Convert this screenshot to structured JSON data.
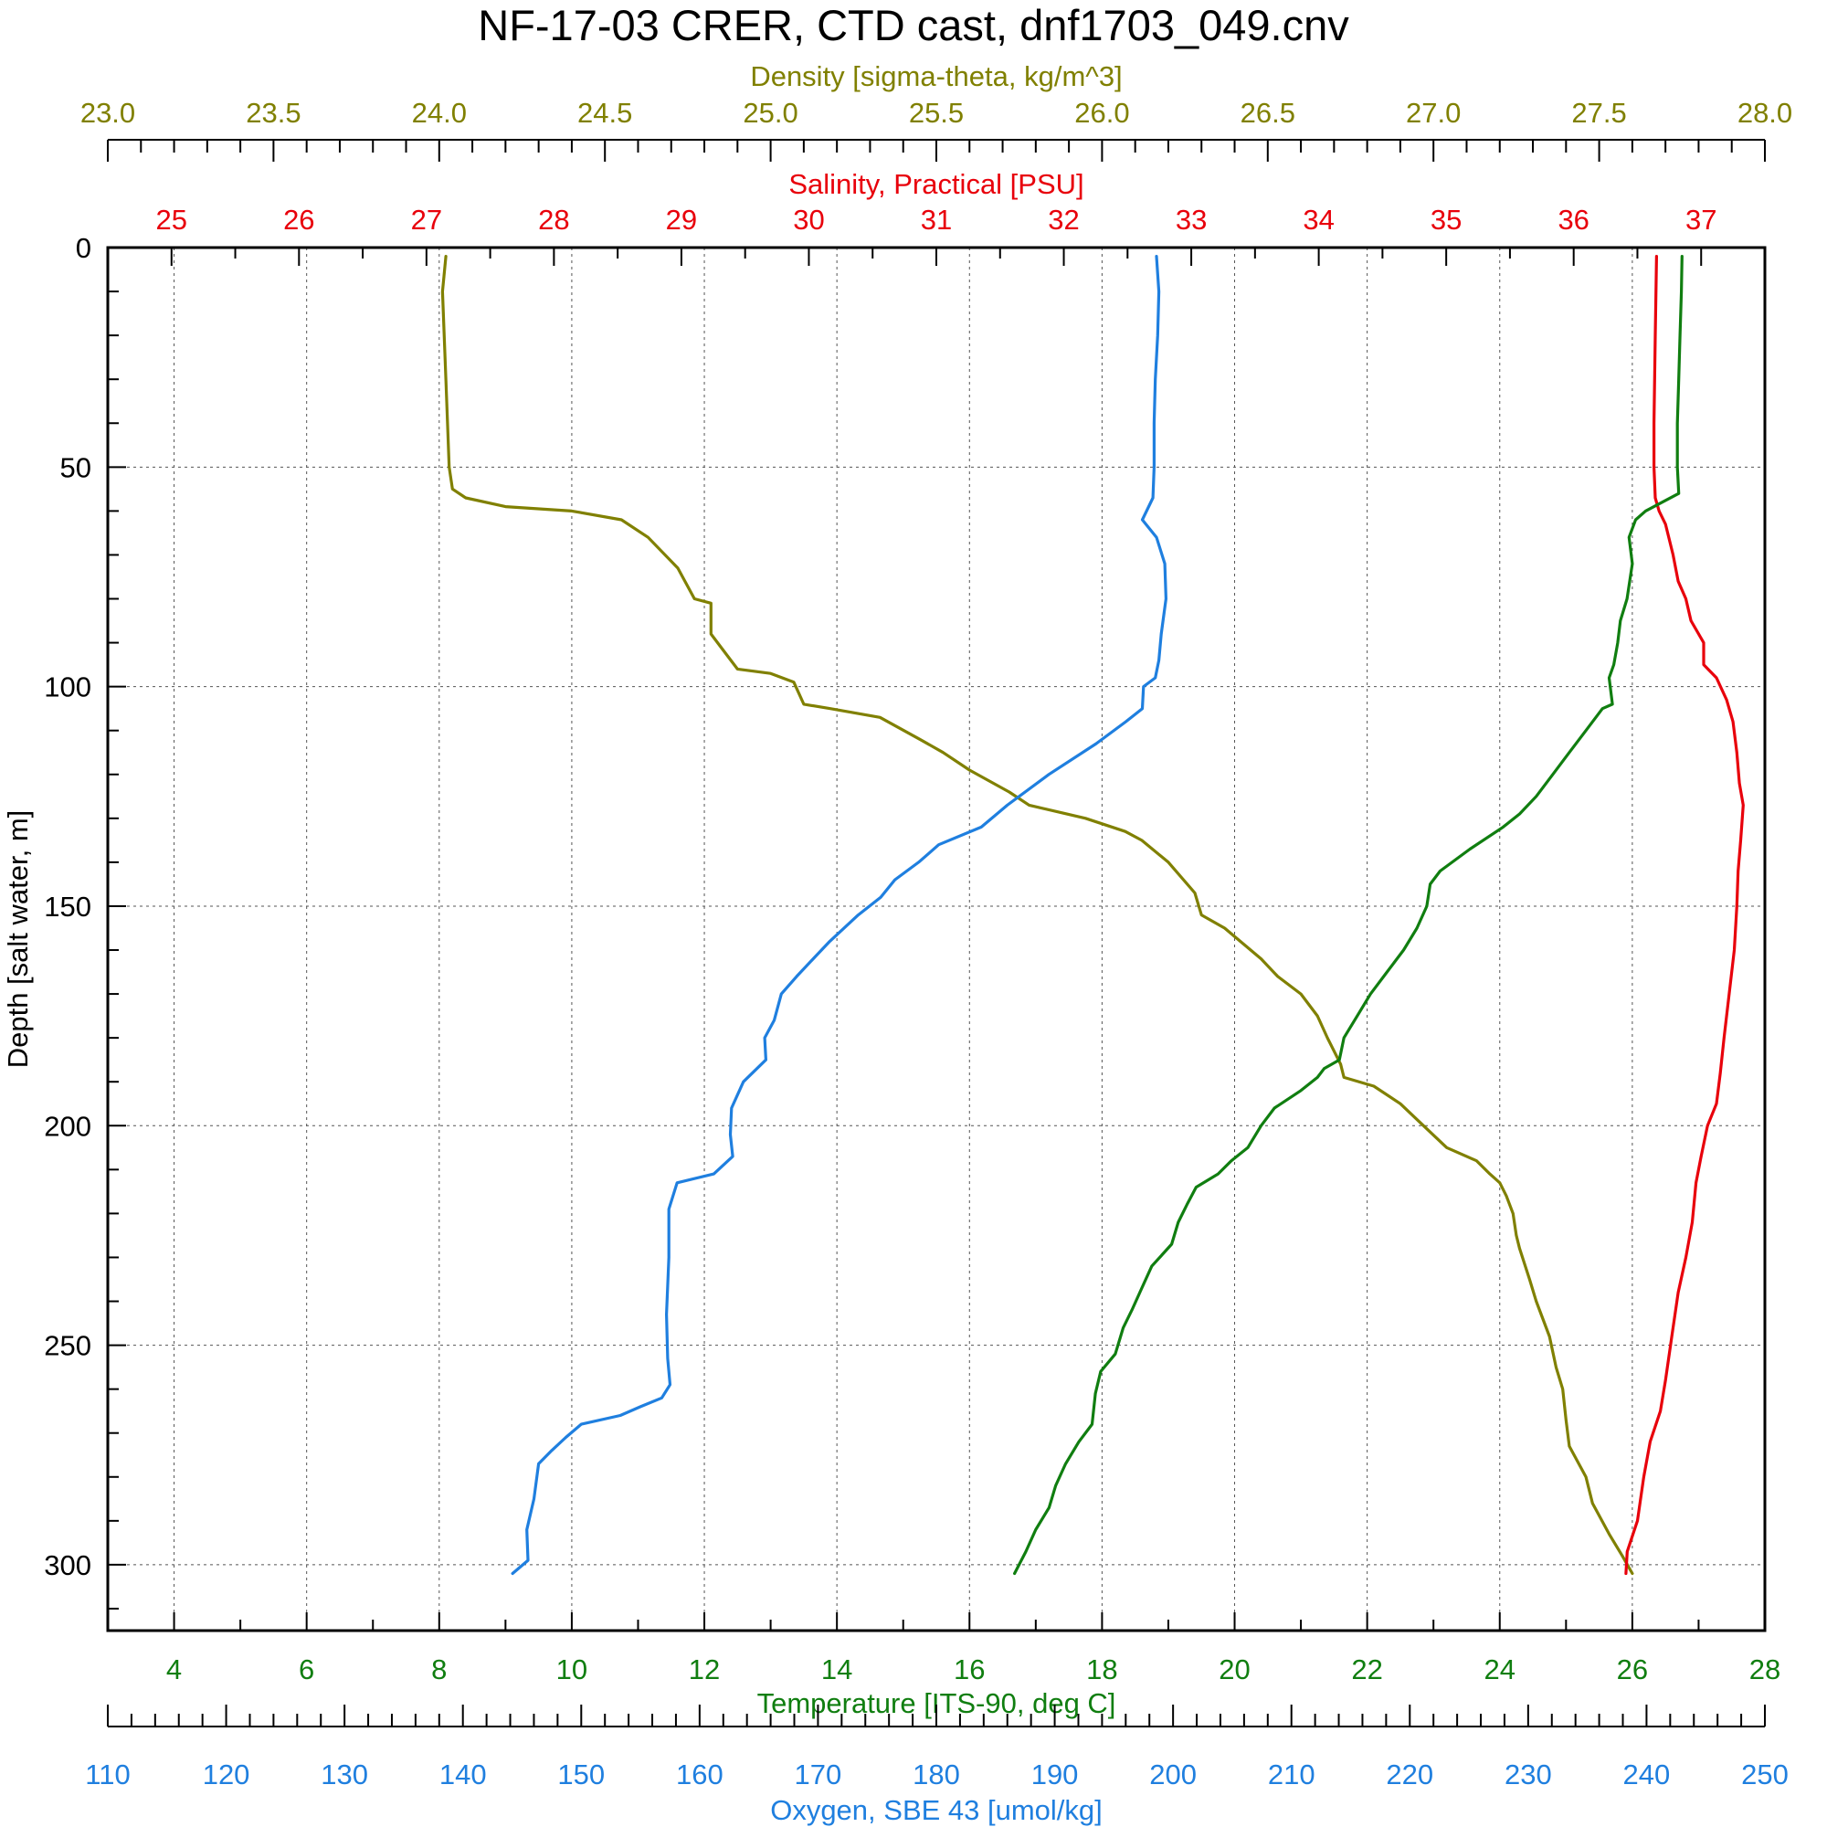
{
  "chart_data": {
    "type": "line",
    "title": "NF-17-03 CRER, CTD cast, dnf1703_049.cnv",
    "grid": true,
    "y_axis": {
      "label": "Depth [salt water, m]",
      "range": [
        0,
        315
      ],
      "inverted": true,
      "ticks": [
        0,
        50,
        100,
        150,
        200,
        250,
        300
      ],
      "minor_step": 10
    },
    "x_axes": [
      {
        "id": "density",
        "label": "Density [sigma-theta, kg/m^3]",
        "position": "top-upper",
        "range": [
          23.0,
          28.0
        ],
        "ticks": [
          "23.0",
          "23.5",
          "24.0",
          "24.5",
          "25.0",
          "25.5",
          "26.0",
          "26.5",
          "27.0",
          "27.5",
          "28.0"
        ],
        "minor_step": 0.1,
        "color": "#808000"
      },
      {
        "id": "salinity",
        "label": "Salinity, Practical [PSU]",
        "position": "top",
        "range": [
          24.5,
          37.5
        ],
        "ticks": [
          "25",
          "26",
          "27",
          "28",
          "29",
          "30",
          "31",
          "32",
          "33",
          "34",
          "35",
          "36",
          "37"
        ],
        "minor_step": 0.5,
        "color": "#e8000b"
      },
      {
        "id": "temperature",
        "label": "Temperature [ITS-90, deg C]",
        "position": "bottom",
        "range": [
          3,
          28
        ],
        "ticks": [
          "4",
          "6",
          "8",
          "10",
          "12",
          "14",
          "16",
          "18",
          "20",
          "22",
          "24",
          "26",
          "28"
        ],
        "minor_step": 1,
        "color": "#107e10"
      },
      {
        "id": "oxygen",
        "label": "Oxygen, SBE 43 [umol/kg]",
        "position": "bottom-lower",
        "range": [
          110,
          250
        ],
        "ticks": [
          "110",
          "120",
          "130",
          "140",
          "150",
          "160",
          "170",
          "180",
          "190",
          "200",
          "210",
          "220",
          "230",
          "240",
          "250"
        ],
        "minor_step": 2,
        "color": "#1f7fdf"
      }
    ],
    "series": [
      {
        "name": "Density [sigma-theta, kg/m^3]",
        "axis": "density",
        "color": "#808000",
        "points": [
          [
            24.02,
            2
          ],
          [
            24.01,
            10
          ],
          [
            24.02,
            30
          ],
          [
            24.03,
            50
          ],
          [
            24.04,
            55
          ],
          [
            24.08,
            57
          ],
          [
            24.2,
            59
          ],
          [
            24.4,
            60
          ],
          [
            24.55,
            62
          ],
          [
            24.63,
            66
          ],
          [
            24.72,
            73
          ],
          [
            24.77,
            80
          ],
          [
            24.82,
            81
          ],
          [
            24.82,
            88
          ],
          [
            24.87,
            93
          ],
          [
            24.9,
            96
          ],
          [
            25.0,
            97
          ],
          [
            25.07,
            99
          ],
          [
            25.1,
            104
          ],
          [
            25.18,
            105
          ],
          [
            25.33,
            107
          ],
          [
            25.45,
            112
          ],
          [
            25.52,
            115
          ],
          [
            25.6,
            119
          ],
          [
            25.72,
            124
          ],
          [
            25.78,
            127
          ],
          [
            25.95,
            130
          ],
          [
            26.07,
            133
          ],
          [
            26.12,
            135
          ],
          [
            26.2,
            140
          ],
          [
            26.28,
            147
          ],
          [
            26.3,
            152
          ],
          [
            26.37,
            155
          ],
          [
            26.48,
            162
          ],
          [
            26.53,
            166
          ],
          [
            26.6,
            170
          ],
          [
            26.65,
            175
          ],
          [
            26.68,
            180
          ],
          [
            26.72,
            186
          ],
          [
            26.73,
            189
          ],
          [
            26.82,
            191
          ],
          [
            26.9,
            195
          ],
          [
            26.97,
            200
          ],
          [
            27.04,
            205
          ],
          [
            27.13,
            208
          ],
          [
            27.17,
            211
          ],
          [
            27.2,
            213
          ],
          [
            27.22,
            216
          ],
          [
            27.24,
            220
          ],
          [
            27.25,
            225
          ],
          [
            27.26,
            228
          ],
          [
            27.29,
            235
          ],
          [
            27.31,
            240
          ],
          [
            27.35,
            248
          ],
          [
            27.37,
            255
          ],
          [
            27.39,
            260
          ],
          [
            27.4,
            267
          ],
          [
            27.41,
            273
          ],
          [
            27.46,
            280
          ],
          [
            27.48,
            286
          ],
          [
            27.53,
            293
          ],
          [
            27.57,
            298
          ],
          [
            27.6,
            302
          ]
        ]
      },
      {
        "name": "Salinity, Practical [PSU]",
        "axis": "salinity",
        "color": "#e8000b",
        "points": [
          [
            36.65,
            2
          ],
          [
            36.64,
            20
          ],
          [
            36.63,
            40
          ],
          [
            36.63,
            50
          ],
          [
            36.64,
            57
          ],
          [
            36.67,
            60
          ],
          [
            36.72,
            63
          ],
          [
            36.78,
            70
          ],
          [
            36.82,
            76
          ],
          [
            36.88,
            80
          ],
          [
            36.92,
            85
          ],
          [
            37.02,
            90
          ],
          [
            37.02,
            95
          ],
          [
            37.12,
            98
          ],
          [
            37.2,
            103
          ],
          [
            37.25,
            108
          ],
          [
            37.28,
            115
          ],
          [
            37.3,
            122
          ],
          [
            37.33,
            127
          ],
          [
            37.31,
            135
          ],
          [
            37.29,
            142
          ],
          [
            37.28,
            150
          ],
          [
            37.26,
            160
          ],
          [
            37.22,
            170
          ],
          [
            37.18,
            180
          ],
          [
            37.15,
            188
          ],
          [
            37.12,
            195
          ],
          [
            37.05,
            200
          ],
          [
            37.0,
            207
          ],
          [
            36.96,
            213
          ],
          [
            36.93,
            222
          ],
          [
            36.88,
            230
          ],
          [
            36.82,
            238
          ],
          [
            36.77,
            248
          ],
          [
            36.72,
            258
          ],
          [
            36.68,
            265
          ],
          [
            36.6,
            272
          ],
          [
            36.55,
            280
          ],
          [
            36.5,
            290
          ],
          [
            36.42,
            297
          ],
          [
            36.41,
            302
          ]
        ]
      },
      {
        "name": "Temperature [ITS-90, deg C]",
        "axis": "temperature",
        "color": "#107e10",
        "points": [
          [
            26.75,
            2
          ],
          [
            26.74,
            10
          ],
          [
            26.72,
            20
          ],
          [
            26.7,
            30
          ],
          [
            26.68,
            40
          ],
          [
            26.68,
            50
          ],
          [
            26.7,
            56
          ],
          [
            26.45,
            58
          ],
          [
            26.2,
            60
          ],
          [
            26.05,
            62
          ],
          [
            25.95,
            66
          ],
          [
            26.0,
            72
          ],
          [
            25.92,
            80
          ],
          [
            25.82,
            85
          ],
          [
            25.78,
            90
          ],
          [
            25.72,
            95
          ],
          [
            25.65,
            98
          ],
          [
            25.7,
            104
          ],
          [
            25.55,
            105
          ],
          [
            25.3,
            110
          ],
          [
            25.05,
            115
          ],
          [
            24.8,
            120
          ],
          [
            24.55,
            125
          ],
          [
            24.3,
            129
          ],
          [
            24.05,
            132
          ],
          [
            23.55,
            137
          ],
          [
            23.1,
            142
          ],
          [
            22.95,
            145
          ],
          [
            22.9,
            150
          ],
          [
            22.75,
            155
          ],
          [
            22.55,
            160
          ],
          [
            22.3,
            165
          ],
          [
            22.05,
            170
          ],
          [
            21.85,
            175
          ],
          [
            21.65,
            180
          ],
          [
            21.58,
            185
          ],
          [
            21.35,
            187
          ],
          [
            21.25,
            189
          ],
          [
            21.0,
            192
          ],
          [
            20.6,
            196
          ],
          [
            20.4,
            200
          ],
          [
            20.2,
            205
          ],
          [
            19.95,
            208
          ],
          [
            19.75,
            211
          ],
          [
            19.42,
            214
          ],
          [
            19.28,
            218
          ],
          [
            19.15,
            222
          ],
          [
            19.05,
            227
          ],
          [
            18.75,
            232
          ],
          [
            18.6,
            237
          ],
          [
            18.45,
            242
          ],
          [
            18.32,
            246
          ],
          [
            18.2,
            252
          ],
          [
            17.98,
            256
          ],
          [
            17.9,
            261
          ],
          [
            17.85,
            268
          ],
          [
            17.65,
            272
          ],
          [
            17.45,
            277
          ],
          [
            17.3,
            282
          ],
          [
            17.2,
            287
          ],
          [
            17.0,
            292
          ],
          [
            16.85,
            297
          ],
          [
            16.68,
            302
          ]
        ]
      },
      {
        "name": "Oxygen, SBE 43 [umol/kg]",
        "axis": "oxygen",
        "color": "#1f7fdf",
        "points": [
          [
            198.6,
            2
          ],
          [
            198.8,
            10
          ],
          [
            198.7,
            20
          ],
          [
            198.5,
            30
          ],
          [
            198.4,
            40
          ],
          [
            198.4,
            50
          ],
          [
            198.3,
            57
          ],
          [
            197.4,
            62
          ],
          [
            198.6,
            66
          ],
          [
            199.3,
            72
          ],
          [
            199.4,
            80
          ],
          [
            199.0,
            88
          ],
          [
            198.8,
            94
          ],
          [
            198.5,
            98
          ],
          [
            197.5,
            100
          ],
          [
            197.4,
            105
          ],
          [
            196.0,
            108
          ],
          [
            193.5,
            113
          ],
          [
            189.5,
            120
          ],
          [
            186.0,
            127
          ],
          [
            183.8,
            132
          ],
          [
            180.2,
            136
          ],
          [
            178.5,
            140
          ],
          [
            176.5,
            144
          ],
          [
            175.3,
            148
          ],
          [
            173.4,
            152
          ],
          [
            171.0,
            158
          ],
          [
            169.6,
            162
          ],
          [
            168.2,
            166
          ],
          [
            166.9,
            170
          ],
          [
            166.3,
            176
          ],
          [
            165.5,
            180
          ],
          [
            165.6,
            185
          ],
          [
            163.7,
            190
          ],
          [
            162.7,
            196
          ],
          [
            162.6,
            202
          ],
          [
            162.8,
            207
          ],
          [
            161.2,
            211
          ],
          [
            158.1,
            213
          ],
          [
            157.4,
            219
          ],
          [
            157.4,
            230
          ],
          [
            157.2,
            243
          ],
          [
            157.3,
            253
          ],
          [
            157.5,
            259
          ],
          [
            156.8,
            262
          ],
          [
            155.0,
            264
          ],
          [
            153.3,
            266
          ],
          [
            150.0,
            268
          ],
          [
            148.7,
            271
          ],
          [
            147.5,
            274
          ],
          [
            146.4,
            277
          ],
          [
            146.0,
            285
          ],
          [
            145.4,
            292
          ],
          [
            145.5,
            299
          ],
          [
            144.2,
            302
          ]
        ]
      }
    ]
  }
}
